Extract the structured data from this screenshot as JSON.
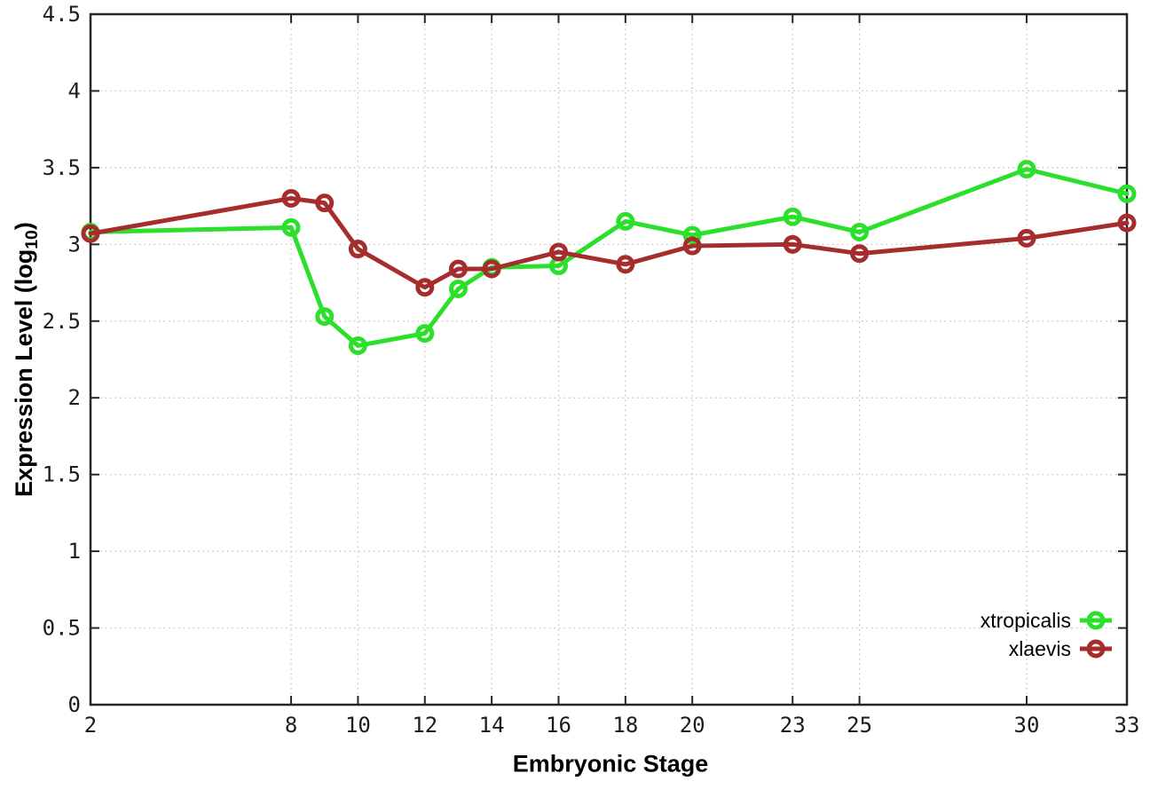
{
  "chart_data": {
    "type": "line",
    "title": "",
    "xlabel": "Embryonic Stage",
    "ylabel": {
      "prefix": "Expression Level (log",
      "subscript": "10",
      "suffix": ")"
    },
    "x": [
      2,
      8,
      9,
      10,
      12,
      13,
      14,
      16,
      18,
      20,
      23,
      25,
      30,
      33
    ],
    "x_ticks": [
      2,
      8,
      10,
      12,
      14,
      16,
      18,
      20,
      23,
      25,
      30,
      33
    ],
    "y_ticks": [
      0,
      0.5,
      1,
      1.5,
      2,
      2.5,
      3,
      3.5,
      4,
      4.5
    ],
    "xlim": [
      2,
      33
    ],
    "ylim": [
      0,
      4.5
    ],
    "grid": true,
    "legend_position": "bottom-right-inside",
    "series": [
      {
        "name": "xtropicalis",
        "color": "#2bdf2b",
        "values": [
          3.08,
          3.11,
          2.53,
          2.34,
          2.42,
          2.71,
          2.85,
          2.86,
          3.15,
          3.06,
          3.18,
          3.08,
          3.49,
          3.33
        ]
      },
      {
        "name": "xlaevis",
        "color": "#a52d2d",
        "values": [
          3.07,
          3.3,
          3.27,
          2.97,
          2.72,
          2.84,
          2.84,
          2.95,
          2.87,
          2.99,
          3.0,
          2.94,
          3.04,
          3.14
        ]
      }
    ]
  }
}
